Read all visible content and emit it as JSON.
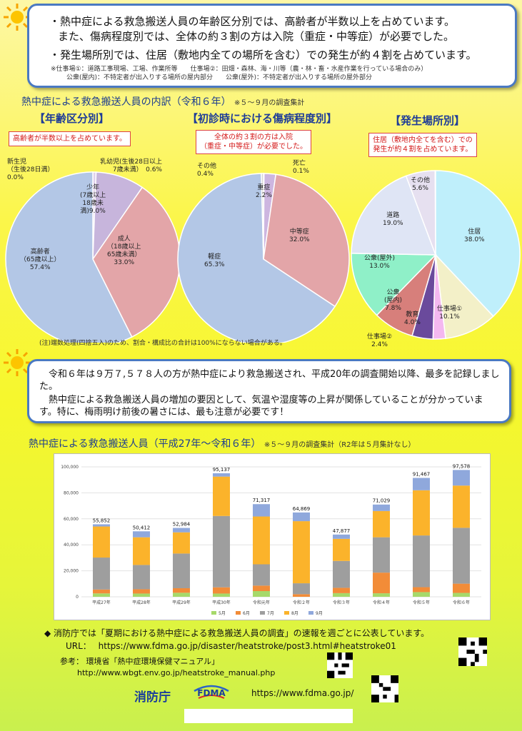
{
  "top_box": {
    "line1": "・熱中症による救急搬送人員の年齢区分別では、高齢者が半数以上を占めています。",
    "line2": "また、傷病程度別では、全体の約３割の方は入院（重症・中等症）が必要でした。",
    "line3": "・発生場所別では、住居（敷地内全ての場所を含む）での発生が約４割を占めています。",
    "note1": "※仕事場①：道路工事現場、工場、作業所等　　仕事場②：田畑・森林、海・川等（農・林・畜・水産作業を行っている場合のみ）",
    "note2": "公衆(屋内)：不特定者が出入りする場所の屋内部分　　公衆(屋外)：不特定者が出入りする場所の屋外部分"
  },
  "section1": {
    "title": "熱中症による救急搬送人員の内訳（令和６年）",
    "title_note": "※５～９月の調査集計",
    "footnote": "(注)端数処理(四捨五入)のため、割合・構成比の合計は100%にならない場合がある。"
  },
  "pie_age": {
    "heading": "【年齢区分別】",
    "callout": "高齢者が半数以上を占めています。",
    "labels": {
      "newborn": "新生児\n（生後28日満）\n0.0%",
      "infant": "乳幼児(生後28日以上\n7歳未満）　0.6%",
      "youth": "少年\n(7歳以上\n18歳未\n満)9.0%",
      "adult": "成人\n（18歳以上\n65歳未満）\n33.0%",
      "elderly": "高齢者\n（65歳以上）\n57.4%"
    }
  },
  "pie_severity": {
    "heading": "【初診時における傷病程度別】",
    "callout": "全体の約３割の方は入院\n（重症・中等症）が必要でした。",
    "labels": {
      "other": "その他\n0.4%",
      "death": "死亡\n0.1%",
      "severe": "重症\n2.2%",
      "moderate": "中等症\n32.0%",
      "mild": "軽症\n65.3%"
    }
  },
  "pie_place": {
    "heading": "【発生場所別】",
    "callout": "住居（敷地内全てを含む）での\n発生が約４割を占めています。",
    "labels": {
      "home": "住居\n38.0%",
      "other": "その他\n5.6%",
      "road": "道路\n19.0%",
      "outdoor": "公衆(屋外)\n13.0%",
      "indoor": "公衆\n(屋内)\n7.8%",
      "edu": "教育\n4.0%",
      "work1": "仕事場①\n10.1%",
      "work2": "仕事場②\n2.4%"
    }
  },
  "middle_box": {
    "para1": "令和６年は９万７,５７８人の方が熱中症により救急搬送され、平成20年の調査開始以降、最多を記録しました。",
    "para2": "熱中症による救急搬送人員の増加の要因として、気温や湿度等の上昇が関係していることが分かっています。特に、梅雨明け前後の暑さには、最も注意が必要です！"
  },
  "bar_section": {
    "title": "熱中症による救急搬送人員（平成27年～令和６年）",
    "title_note": "※５～９月の調査集計（R2年は５月集計なし）"
  },
  "chart_data": {
    "type": "bar",
    "stacked": true,
    "categories": [
      "平成27年",
      "平成28年",
      "平成29年",
      "平成30年",
      "令和元年",
      "令和２年",
      "令和３年",
      "令和４年",
      "令和５年",
      "令和６年"
    ],
    "totals": [
      55852,
      50412,
      52984,
      95137,
      71317,
      64869,
      47877,
      71029,
      91467,
      97578
    ],
    "series": [
      {
        "name": "5月",
        "color": "#a6d96a",
        "values": [
          2600,
          2500,
          3100,
          2500,
          4400,
          0,
          2800,
          2700,
          3600,
          3000
        ]
      },
      {
        "name": "6月",
        "color": "#f28c38",
        "values": [
          3000,
          3300,
          3500,
          4800,
          4200,
          2000,
          4100,
          15900,
          3800,
          7100
        ]
      },
      {
        "name": "7月",
        "color": "#9e9e9e",
        "values": [
          24600,
          18700,
          26700,
          54900,
          16400,
          8400,
          20700,
          27200,
          39800,
          43000
        ]
      },
      {
        "name": "8月",
        "color": "#fbb32b",
        "values": [
          23900,
          21300,
          16300,
          30300,
          36800,
          47800,
          17000,
          20200,
          34800,
          32500
        ]
      },
      {
        "name": "9月",
        "color": "#8fa8dc",
        "values": [
          1700,
          4600,
          3400,
          2600,
          9500,
          6700,
          3300,
          5000,
          9500,
          12000
        ]
      }
    ],
    "ylim": [
      0,
      100000
    ],
    "yticks": [
      "0",
      "20,000",
      "40,000",
      "60,000",
      "80,000",
      "100,000"
    ],
    "labels_shown": [
      "55,852",
      "50,412",
      "52,984",
      "95,137",
      "71,317",
      "64,869",
      "47,877",
      "71,029",
      "91,467",
      "97,578"
    ],
    "legend_placement": "bottom",
    "grid": true
  },
  "footer": {
    "line1": "◆ 消防庁では「夏期における熱中症による救急搬送人員の調査」の速報を週ごとに公表しています。",
    "url_label": "URL：",
    "url": "https://www.fdma.go.jp/disaster/heatstroke/post3.html#heatstroke01",
    "ref_label": "参考：",
    "ref_title": "環境省「熱中症環境保健マニュアル」",
    "ref_url": "http://www.wbgt.env.go.jp/heatstroke_manual.php",
    "agency": "消防庁",
    "fdma_logo": "FDMA",
    "agency_url": "https://www.fdma.go.jp/"
  }
}
